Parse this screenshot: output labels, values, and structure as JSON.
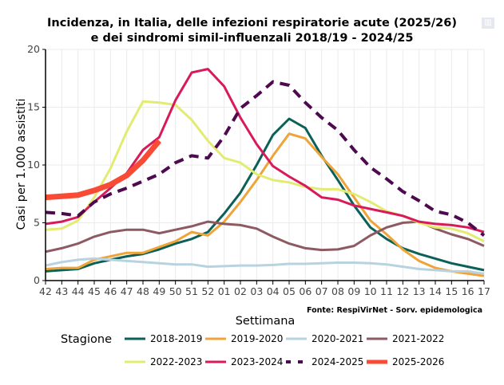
{
  "title_line1": "Incidenza, in Italia, delle infezioni respiratorie acute (2025/26)",
  "title_line2": "e dei sindromi simil-influenzali 2018/19 - 2024/25",
  "modebar_icon": "chart-icon",
  "source": "Fonte: RespiVirNet - Sorv. epidemologica",
  "chart_data": {
    "type": "line",
    "title": "Incidenza, in Italia, delle infezioni respiratorie acute (2025/26) e dei sindromi simil-influenzali 2018/19 - 2024/25",
    "xlabel": "Settimana",
    "ylabel": "Casi per 1.000 assistiti",
    "ylim": [
      0,
      20
    ],
    "yticks": [
      0,
      5,
      10,
      15,
      20
    ],
    "grid": true,
    "legend_title": "Stagione",
    "legend_position": "bottom",
    "x": [
      "42",
      "43",
      "44",
      "45",
      "46",
      "47",
      "48",
      "49",
      "50",
      "51",
      "52",
      "01",
      "02",
      "03",
      "04",
      "05",
      "06",
      "07",
      "08",
      "09",
      "10",
      "11",
      "12",
      "13",
      "14",
      "15",
      "16",
      "17"
    ],
    "series": [
      {
        "name": "2018-2019",
        "color": "#0b6157",
        "dash": false,
        "width": 3,
        "values": [
          0.8,
          0.9,
          1.0,
          1.5,
          1.8,
          2.1,
          2.3,
          2.7,
          3.2,
          3.6,
          4.2,
          5.8,
          7.6,
          10.0,
          12.6,
          14.0,
          13.2,
          10.8,
          8.7,
          6.5,
          4.6,
          3.6,
          2.8,
          2.3,
          1.9,
          1.5,
          1.2,
          0.9
        ]
      },
      {
        "name": "2019-2020",
        "color": "#efa43a",
        "dash": false,
        "width": 3,
        "values": [
          1.0,
          1.1,
          1.1,
          1.8,
          2.1,
          2.4,
          2.4,
          2.9,
          3.4,
          4.2,
          3.9,
          5.1,
          6.8,
          8.7,
          10.8,
          12.7,
          12.3,
          10.7,
          9.2,
          7.2,
          5.2,
          4.0,
          2.7,
          1.7,
          1.1,
          0.8,
          0.6,
          0.4
        ]
      },
      {
        "name": "2020-2021",
        "color": "#b8d3e0",
        "dash": false,
        "width": 3,
        "values": [
          1.3,
          1.6,
          1.8,
          1.9,
          1.8,
          1.7,
          1.6,
          1.5,
          1.4,
          1.4,
          1.2,
          1.25,
          1.3,
          1.3,
          1.35,
          1.45,
          1.45,
          1.5,
          1.55,
          1.55,
          1.5,
          1.4,
          1.2,
          1.0,
          0.9,
          0.8,
          0.8,
          0.6
        ]
      },
      {
        "name": "2021-2022",
        "color": "#8d5a62",
        "dash": false,
        "width": 3,
        "values": [
          2.5,
          2.8,
          3.2,
          3.8,
          4.2,
          4.4,
          4.4,
          4.1,
          4.4,
          4.7,
          5.1,
          4.9,
          4.8,
          4.5,
          3.8,
          3.2,
          2.8,
          2.65,
          2.7,
          3.0,
          3.9,
          4.6,
          5.0,
          5.1,
          4.5,
          4.0,
          3.6,
          3.0
        ]
      },
      {
        "name": "2022-2023",
        "color": "#e2ec72",
        "dash": false,
        "width": 3,
        "values": [
          4.4,
          4.5,
          5.2,
          7.2,
          9.7,
          12.9,
          15.5,
          15.4,
          15.2,
          13.9,
          12.1,
          10.6,
          10.2,
          9.2,
          8.7,
          8.5,
          8.1,
          7.9,
          7.9,
          7.5,
          6.8,
          6.0,
          5.6,
          5.0,
          4.6,
          4.5,
          4.1,
          3.4
        ]
      },
      {
        "name": "2023-2024",
        "color": "#d91a5a",
        "dash": false,
        "width": 3,
        "values": [
          4.9,
          5.1,
          5.5,
          6.8,
          8.0,
          9.3,
          11.3,
          12.4,
          15.6,
          18.0,
          18.3,
          16.8,
          14.1,
          11.8,
          9.9,
          9.0,
          8.2,
          7.2,
          7.0,
          6.5,
          6.2,
          5.9,
          5.6,
          5.1,
          4.9,
          4.8,
          4.6,
          4.2
        ]
      },
      {
        "name": "2024-2025",
        "color": "#4d0a4e",
        "dash": true,
        "width": 4,
        "values": [
          5.9,
          5.8,
          5.6,
          6.8,
          7.5,
          8.0,
          8.6,
          9.2,
          10.2,
          10.8,
          10.6,
          12.5,
          14.9,
          16.0,
          17.2,
          16.9,
          15.4,
          14.1,
          13.0,
          11.3,
          9.8,
          8.8,
          7.7,
          6.9,
          6.0,
          5.7,
          5.0,
          3.9
        ]
      },
      {
        "name": "2025-2026",
        "color": "#f84b35",
        "dash": false,
        "width": 7,
        "values": [
          7.2,
          7.3,
          7.4,
          7.8,
          8.3,
          9.1,
          10.4,
          12.1,
          null,
          null,
          null,
          null,
          null,
          null,
          null,
          null,
          null,
          null,
          null,
          null,
          null,
          null,
          null,
          null,
          null,
          null,
          null,
          null
        ]
      }
    ]
  }
}
